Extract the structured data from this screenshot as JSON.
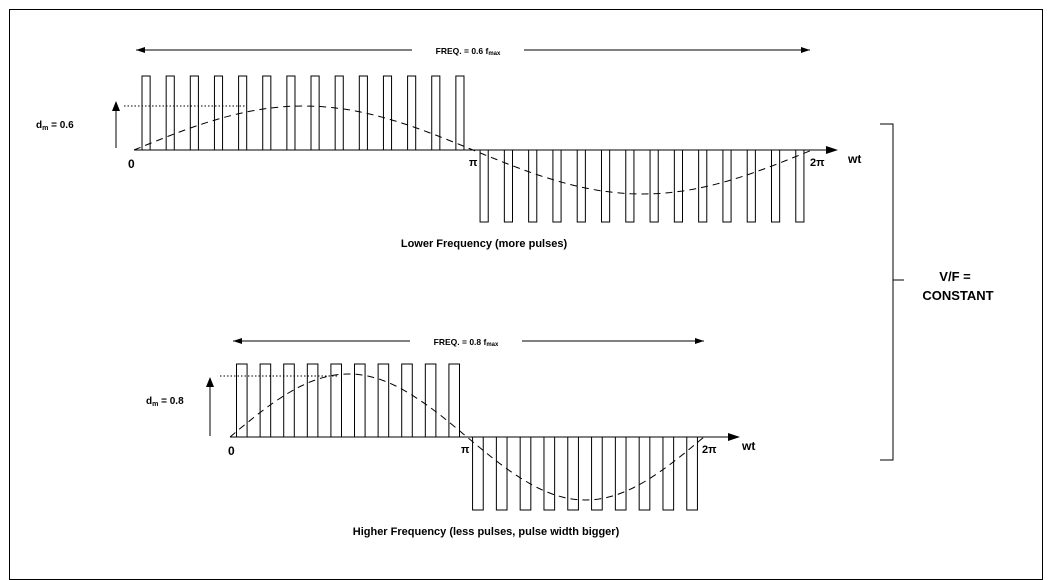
{
  "colors": {
    "ink": "#000000",
    "background": "#ffffff"
  },
  "panels": [
    {
      "id": "lower",
      "freq_label_main": "FREQ. = 0.6 f",
      "freq_label_sub": "max",
      "dm_label_main": "d",
      "dm_label_sub": "m",
      "dm_label_value": " = 0.6",
      "axis_origin_label": "0",
      "axis_pi_label": "π",
      "axis_2pi_label": "2π",
      "axis_var_label": "wt",
      "caption": "Lower Frequency (more pulses)",
      "duty": 0.6,
      "pulses_per_half": 14
    },
    {
      "id": "higher",
      "freq_label_main": "FREQ. = 0.8 f",
      "freq_label_sub": "max",
      "dm_label_main": "d",
      "dm_label_sub": "m",
      "dm_label_value": " = 0.8",
      "axis_origin_label": "0",
      "axis_pi_label": "π",
      "axis_2pi_label": "2π",
      "axis_var_label": "wt",
      "caption": "Higher Frequency (less pulses, pulse width bigger)",
      "duty": 0.8,
      "pulses_per_half": 10
    }
  ],
  "relation_label_line1": "V/F =",
  "relation_label_line2": "CONSTANT"
}
